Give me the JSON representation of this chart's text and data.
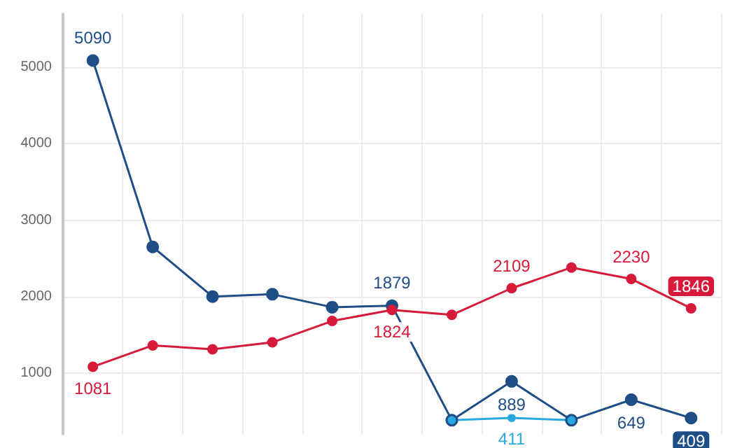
{
  "chart_data": {
    "type": "line",
    "categories": [
      null,
      null,
      null,
      null,
      null,
      null,
      null,
      null,
      null,
      null,
      null
    ],
    "series": [
      {
        "color": "#1f4e86",
        "values": [
          5090,
          2650,
          2000,
          2030,
          1860,
          1879,
          380,
          889,
          380,
          649,
          409
        ],
        "value_labels": [
          "5090",
          null,
          null,
          null,
          null,
          "1879",
          null,
          "889",
          null,
          "649",
          "409"
        ]
      },
      {
        "color": "#d7193a",
        "values": [
          1081,
          1360,
          1310,
          1400,
          1680,
          1824,
          1760,
          2109,
          2380,
          2230,
          1846
        ],
        "value_labels": [
          "1081",
          null,
          null,
          null,
          null,
          "1824",
          null,
          "2109",
          null,
          "2230",
          "1846"
        ]
      },
      {
        "color": "#29a9df",
        "values": [
          null,
          null,
          null,
          null,
          null,
          null,
          380,
          411,
          380,
          null,
          null
        ],
        "value_labels": [
          null,
          null,
          null,
          null,
          null,
          null,
          null,
          "411",
          null,
          null,
          null
        ]
      }
    ],
    "ylim": [
      200,
      5700
    ],
    "yticks": [
      1000,
      2000,
      3000,
      4000,
      5000
    ],
    "grid": true,
    "marker": "circle",
    "line_style": "solid",
    "tick_labels": "y"
  }
}
